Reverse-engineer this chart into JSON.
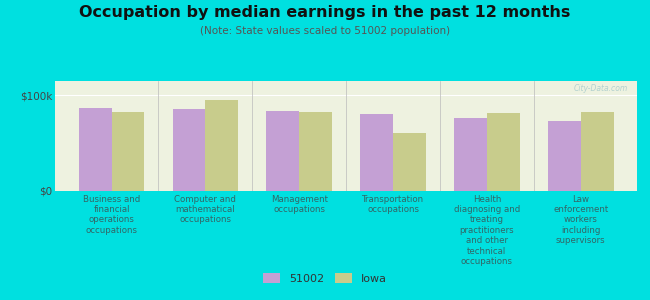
{
  "title": "Occupation by median earnings in the past 12 months",
  "subtitle": "(Note: State values scaled to 51002 population)",
  "categories": [
    "Business and\nfinancial\noperations\noccupations",
    "Computer and\nmathematical\noccupations",
    "Management\noccupations",
    "Transportation\noccupations",
    "Health\ndiagnosing and\ntreating\npractitioners\nand other\ntechnical\noccupations",
    "Law\nenforcement\nworkers\nincluding\nsupervisors"
  ],
  "values_51002": [
    87000,
    86000,
    83000,
    80000,
    76000,
    73000
  ],
  "values_iowa": [
    82000,
    95000,
    82000,
    60000,
    81000,
    82000
  ],
  "color_51002": "#c4a0d4",
  "color_iowa": "#c8cc8c",
  "background_outer": "#00e0e0",
  "background_chart": "#eef2e0",
  "ylabel_0": "$0",
  "ylabel_100k": "$100k",
  "ylim": [
    0,
    115000
  ],
  "yticks": [
    0,
    100000
  ],
  "legend_label_51002": "51002",
  "legend_label_iowa": "Iowa",
  "watermark": "City-Data.com",
  "bar_width": 0.35
}
